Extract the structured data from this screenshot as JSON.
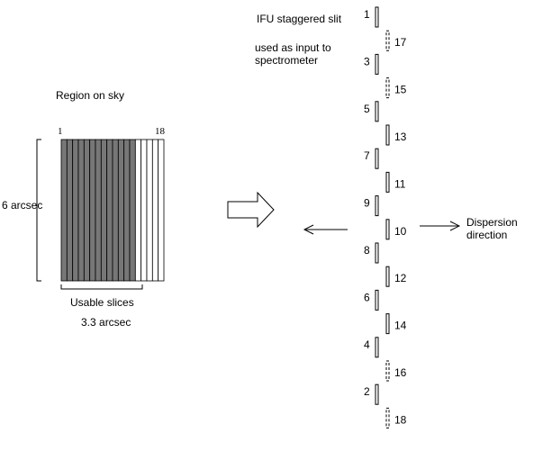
{
  "region": {
    "title": "Region on sky",
    "first_index": "1",
    "last_index": "18",
    "height_label": "6 arcsec",
    "width_label": "3.3 arcsec",
    "usable_label": "Usable slices",
    "total_slices": 18,
    "usable_slices": 13,
    "usable_color": "#777777"
  },
  "slit": {
    "title": "IFU staggered slit",
    "note_line1": "used as input to",
    "note_line2": "spectrometer",
    "segments": [
      {
        "label": "1",
        "dashed": false
      },
      {
        "label": "17",
        "dashed": true
      },
      {
        "label": "3",
        "dashed": false
      },
      {
        "label": "15",
        "dashed": true
      },
      {
        "label": "5",
        "dashed": false
      },
      {
        "label": "13",
        "dashed": false
      },
      {
        "label": "7",
        "dashed": false
      },
      {
        "label": "11",
        "dashed": false
      },
      {
        "label": "9",
        "dashed": false
      },
      {
        "label": "10",
        "dashed": false
      },
      {
        "label": "8",
        "dashed": false
      },
      {
        "label": "12",
        "dashed": false
      },
      {
        "label": "6",
        "dashed": false
      },
      {
        "label": "14",
        "dashed": false
      },
      {
        "label": "4",
        "dashed": false
      },
      {
        "label": "16",
        "dashed": true
      },
      {
        "label": "2",
        "dashed": false
      },
      {
        "label": "18",
        "dashed": true
      }
    ]
  },
  "dispersion": {
    "line1": "Dispersion",
    "line2": "direction"
  }
}
